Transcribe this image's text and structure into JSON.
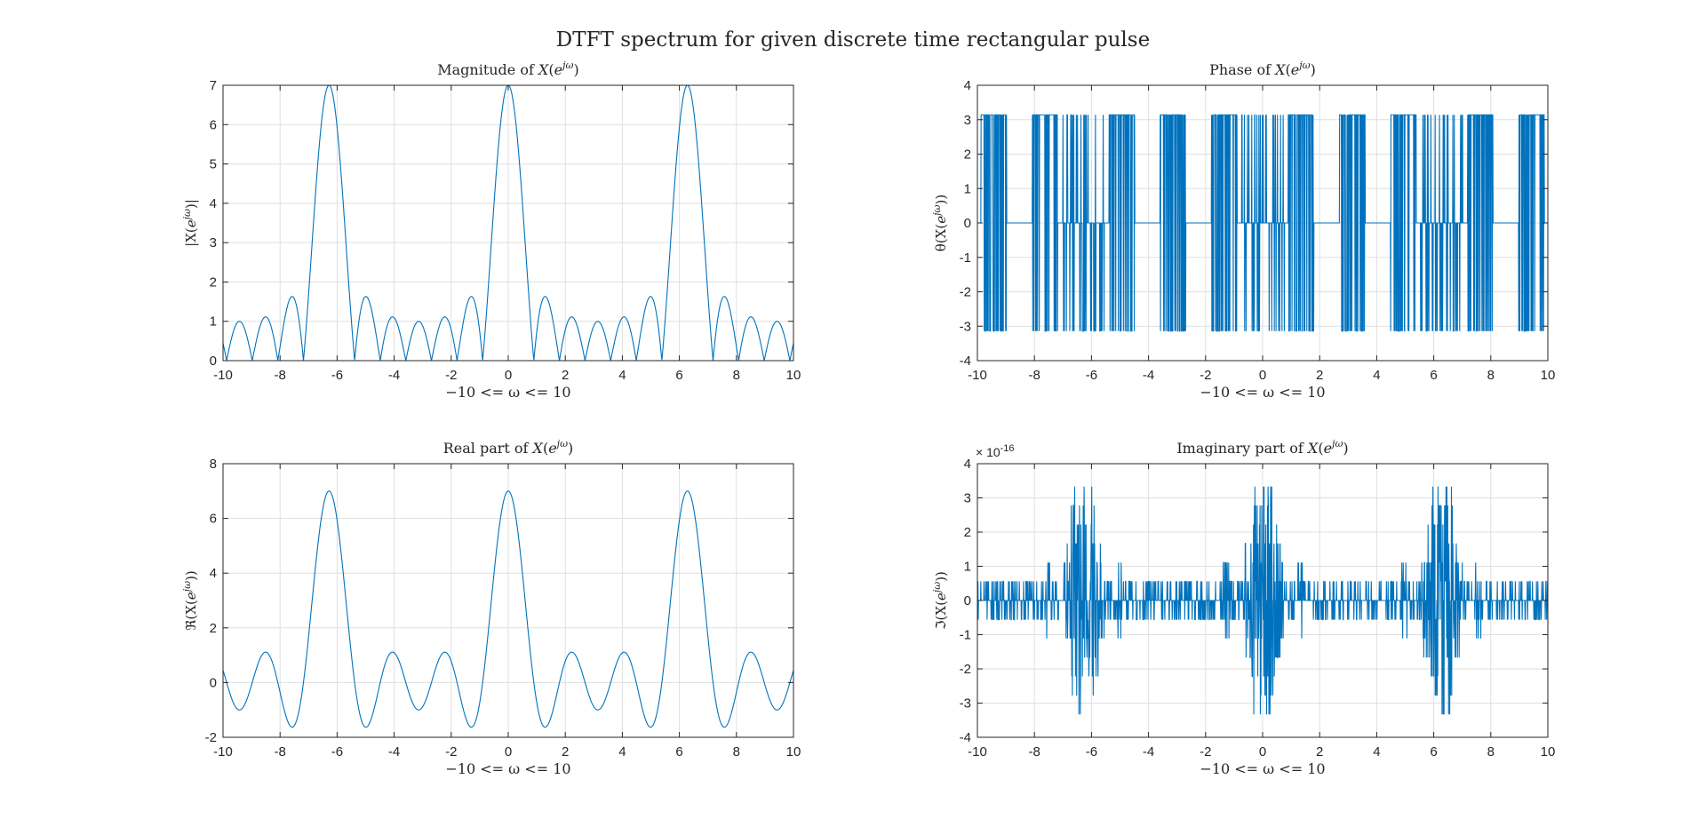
{
  "figure": {
    "title": "DTFT spectrum for given discrete time rectangular pulse",
    "line_color": "#0072BD",
    "grid_color": "#DFDFDF",
    "axes_color": "#262626"
  },
  "chart_data": [
    {
      "type": "line",
      "id": "magnitude",
      "title_prefix": "Magnitude of ",
      "xlabel": "−10 <= ω <= 10",
      "ylabel_prefix": "|X(",
      "ylabel_suffix": ")|",
      "xlim": [
        -10,
        10
      ],
      "ylim": [
        0,
        7
      ],
      "xticks": [
        -10,
        -8,
        -6,
        -4,
        -2,
        0,
        2,
        4,
        6,
        8,
        10
      ],
      "yticks": [
        0,
        1,
        2,
        3,
        4,
        5,
        6,
        7
      ],
      "grid": true,
      "series": [
        {
          "function": "abs(sin(3.5*w)/sin(0.5*w))",
          "samples": 2001,
          "peak_value": 7,
          "sidelobe_max": 1.6
        }
      ]
    },
    {
      "type": "line",
      "id": "phase",
      "title_prefix": "Phase of ",
      "xlabel": "−10 <= ω <= 10",
      "ylabel_prefix": "θ(X(",
      "ylabel_suffix": "))",
      "xlim": [
        -10,
        10
      ],
      "ylim": [
        -4,
        4
      ],
      "xticks": [
        -10,
        -8,
        -6,
        -4,
        -2,
        0,
        2,
        4,
        6,
        8,
        10
      ],
      "yticks": [
        -4,
        -3,
        -2,
        -1,
        0,
        1,
        2,
        3,
        4
      ],
      "grid": true,
      "series": [
        {
          "function": "angle(sin(3.5*w)/sin(0.5*w))",
          "samples": 2001,
          "values_set": [
            -3.1416,
            0,
            3.1416
          ]
        }
      ]
    },
    {
      "type": "line",
      "id": "real",
      "title_prefix": "Real part of ",
      "xlabel": "−10 <= ω <= 10",
      "ylabel_prefix": "ℜ(X(",
      "ylabel_suffix": "))",
      "xlim": [
        -10,
        10
      ],
      "ylim": [
        -2,
        8
      ],
      "xticks": [
        -10,
        -8,
        -6,
        -4,
        -2,
        0,
        2,
        4,
        6,
        8,
        10
      ],
      "yticks": [
        -2,
        0,
        2,
        4,
        6,
        8
      ],
      "grid": true,
      "series": [
        {
          "function": "sin(3.5*w)/sin(0.5*w)",
          "samples": 2001,
          "peak_value": 7,
          "min_value": -1.6
        }
      ]
    },
    {
      "type": "line",
      "id": "imag",
      "title_prefix": "Imaginary part of ",
      "xlabel": "−10 <= ω <= 10",
      "ylabel_prefix": "ℑ(X(",
      "ylabel_suffix": "))",
      "xlim": [
        -10,
        10
      ],
      "ylim": [
        -4,
        4
      ],
      "xticks": [
        -10,
        -8,
        -6,
        -4,
        -2,
        0,
        2,
        4,
        6,
        8,
        10
      ],
      "yticks": [
        -4,
        -3,
        -2,
        -1,
        0,
        1,
        2,
        3,
        4
      ],
      "exponent_base": "× 10",
      "exponent_power": "-16",
      "grid": true,
      "series": [
        {
          "function": "numerical rounding noise",
          "samples": 2001,
          "levels": [
            -3.33,
            -2.78,
            -2.22,
            -1.67,
            -1.11,
            -0.56,
            0,
            0.56,
            1.11,
            1.67,
            2.22,
            2.78,
            3.33
          ]
        }
      ]
    }
  ]
}
